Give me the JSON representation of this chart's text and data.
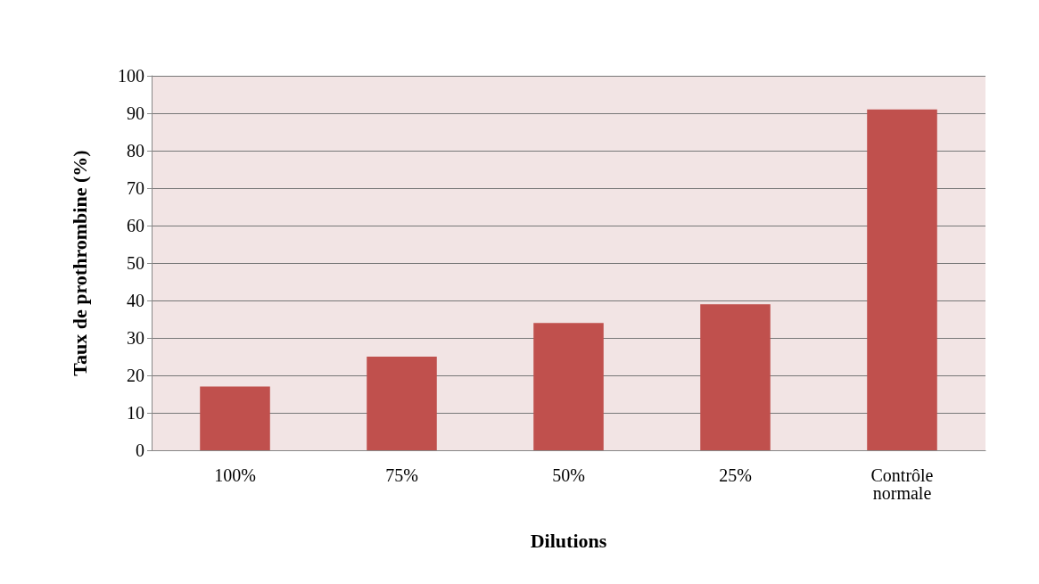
{
  "chart_data": {
    "type": "bar",
    "xlabel": "Dilutions",
    "ylabel": "Taux de prothrombine (%)",
    "categories": [
      "100%",
      "75%",
      "50%",
      "25%",
      "Contrôle\nnormale"
    ],
    "values": [
      17,
      25,
      34,
      39,
      91
    ],
    "color": "#c0504d",
    "ylim": [
      0,
      100
    ],
    "yticks": [
      0,
      10,
      20,
      30,
      40,
      50,
      60,
      70,
      80,
      90,
      100
    ],
    "grid": "y"
  }
}
